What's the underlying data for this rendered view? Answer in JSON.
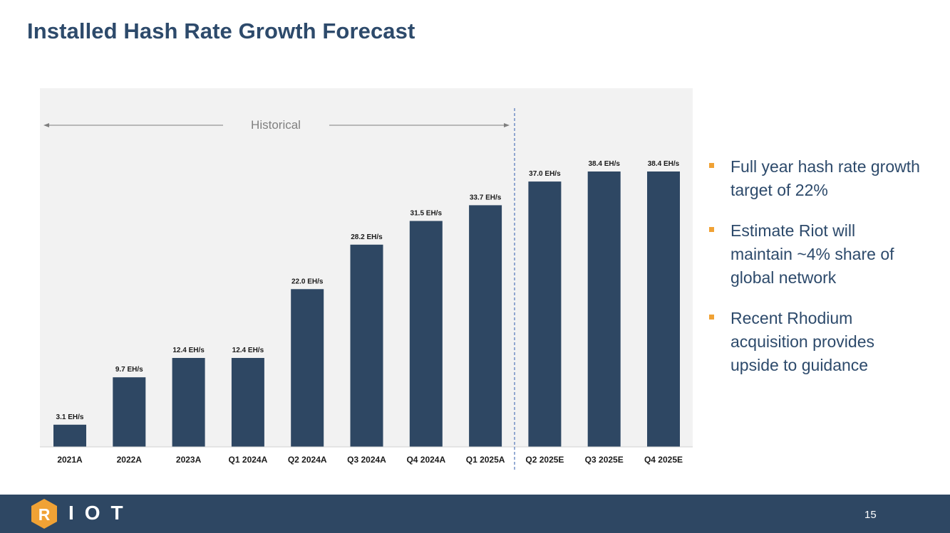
{
  "header": {
    "title": "Installed Hash Rate Growth Forecast"
  },
  "chart_data": {
    "type": "bar",
    "title": "Installed Hash Rate Growth Forecast",
    "xlabel": "",
    "ylabel": "",
    "ylim": [
      0,
      38.4
    ],
    "unit": "EH/s",
    "categories": [
      "2021A",
      "2022A",
      "2023A",
      "Q1 2024A",
      "Q2 2024A",
      "Q3 2024A",
      "Q4 2024A",
      "Q1 2025A",
      "Q2 2025E",
      "Q3 2025E",
      "Q4 2025E"
    ],
    "values": [
      3.1,
      9.7,
      12.4,
      12.4,
      22.0,
      28.2,
      31.5,
      33.7,
      37.0,
      38.4,
      38.4
    ],
    "data_labels": [
      "3.1 EH/s",
      "9.7 EH/s",
      "12.4 EH/s",
      "12.4 EH/s",
      "22.0 EH/s",
      "28.2 EH/s",
      "31.5 EH/s",
      "33.7 EH/s",
      "37.0 EH/s",
      "38.4 EH/s",
      "38.4 EH/s"
    ],
    "annotation": "Historical",
    "bar_color": "#2e4763",
    "plot_background": "#f2f2f2",
    "grid": false
  },
  "bullets": [
    {
      "text": "Full year hash rate growth target of 22%"
    },
    {
      "text": "Estimate Riot will maintain ~4% share of global network"
    },
    {
      "text": "Recent Rhodium acquisition provides upside to guidance"
    }
  ],
  "footer": {
    "logo_letter": "R",
    "logo_text": "IOT",
    "page_number": "15"
  },
  "colors": {
    "accent": "#f0a235",
    "brand": "#2e4763",
    "title": "#2d4a6b"
  }
}
